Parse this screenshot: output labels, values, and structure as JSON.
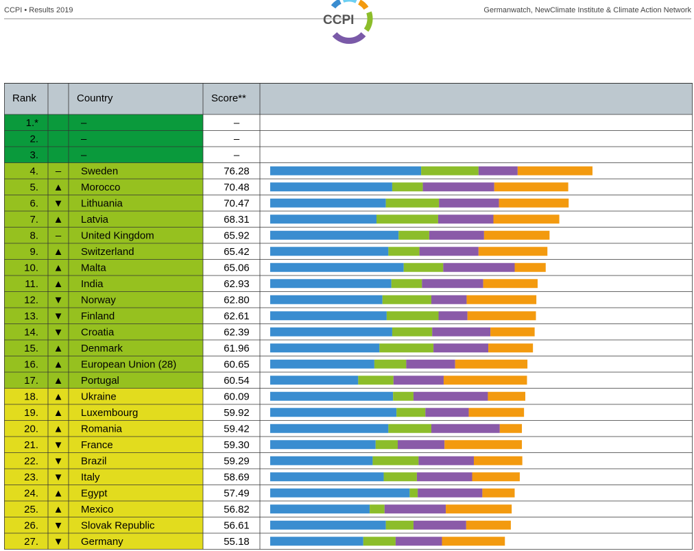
{
  "header": {
    "left_text": "CCPI • Results 2019",
    "right_text": "Germanwatch, NewClimate Institute & Climate Action Network",
    "logo_text": "CCPI"
  },
  "table": {
    "columns": [
      "Rank",
      "",
      "Country",
      "Score**",
      ""
    ],
    "colors": {
      "header_bg": "#bdc8cf",
      "very_high": "#0a9a3c",
      "high": "#96c11f",
      "medium": "#e2dc1e",
      "blank": "#ffffff"
    },
    "trend_symbols": {
      "same": "–",
      "up": "▲",
      "down": "▼"
    }
  },
  "chart_data": {
    "type": "bar",
    "stacked": true,
    "orientation": "horizontal",
    "series": [
      {
        "name": "",
        "color": "#3a8dd0"
      },
      {
        "name": "",
        "color": "#8cbd2a"
      },
      {
        "name": "",
        "color": "#8a5aa8"
      },
      {
        "name": "",
        "color": "#f39a0f"
      }
    ],
    "rows": [
      {
        "rank": "1.*",
        "trend": "",
        "country": "–",
        "score": "–",
        "band": "very_high",
        "values": []
      },
      {
        "rank": "2.",
        "trend": "",
        "country": "–",
        "score": "–",
        "band": "very_high",
        "values": []
      },
      {
        "rank": "3.",
        "trend": "",
        "country": "–",
        "score": "–",
        "band": "very_high",
        "values": []
      },
      {
        "rank": "4.",
        "trend": "same",
        "country": "Sweden",
        "score": "76.28",
        "band": "high",
        "values": [
          35.5,
          13.5,
          9.2,
          17.6
        ]
      },
      {
        "rank": "5.",
        "trend": "up",
        "country": "Morocco",
        "score": "70.48",
        "band": "high",
        "values": [
          28.7,
          7.2,
          16.8,
          17.4
        ]
      },
      {
        "rank": "6.",
        "trend": "down",
        "country": "Lithuania",
        "score": "70.47",
        "band": "high",
        "values": [
          27.2,
          12.5,
          14.1,
          16.4
        ]
      },
      {
        "rank": "7.",
        "trend": "up",
        "country": "Latvia",
        "score": "68.31",
        "band": "high",
        "values": [
          25.0,
          14.5,
          13.0,
          15.5
        ]
      },
      {
        "rank": "8.",
        "trend": "same",
        "country": "United Kingdom",
        "score": "65.92",
        "band": "high",
        "values": [
          30.2,
          7.2,
          12.9,
          15.4
        ]
      },
      {
        "rank": "9.",
        "trend": "up",
        "country": "Switzerland",
        "score": "65.42",
        "band": "high",
        "values": [
          27.8,
          7.3,
          13.9,
          16.2
        ]
      },
      {
        "rank": "10.",
        "trend": "up",
        "country": "Malta",
        "score": "65.06",
        "band": "high",
        "values": [
          31.4,
          9.3,
          16.8,
          7.3
        ]
      },
      {
        "rank": "11.",
        "trend": "up",
        "country": "India",
        "score": "62.93",
        "band": "high",
        "values": [
          28.5,
          7.2,
          14.4,
          12.8
        ]
      },
      {
        "rank": "12.",
        "trend": "down",
        "country": "Norway",
        "score": "62.80",
        "band": "high",
        "values": [
          26.4,
          11.5,
          8.3,
          16.4
        ]
      },
      {
        "rank": "13.",
        "trend": "down",
        "country": "Finland",
        "score": "62.61",
        "band": "high",
        "values": [
          27.4,
          12.2,
          6.8,
          16.1
        ]
      },
      {
        "rank": "14.",
        "trend": "down",
        "country": "Croatia",
        "score": "62.39",
        "band": "high",
        "values": [
          28.7,
          9.4,
          13.7,
          10.4
        ]
      },
      {
        "rank": "15.",
        "trend": "up",
        "country": "Denmark",
        "score": "61.96",
        "band": "high",
        "values": [
          25.7,
          12.7,
          12.9,
          10.5
        ]
      },
      {
        "rank": "16.",
        "trend": "up",
        "country": "European Union (28)",
        "score": "60.65",
        "band": "high",
        "values": [
          24.5,
          7.5,
          11.5,
          17.0
        ]
      },
      {
        "rank": "17.",
        "trend": "up",
        "country": "Portugal",
        "score": "60.54",
        "band": "high",
        "values": [
          20.7,
          8.3,
          11.8,
          19.6
        ]
      },
      {
        "rank": "18.",
        "trend": "up",
        "country": "Ukraine",
        "score": "60.09",
        "band": "medium",
        "values": [
          28.9,
          4.8,
          17.5,
          8.8
        ]
      },
      {
        "rank": "19.",
        "trend": "up",
        "country": "Luxembourg",
        "score": "59.92",
        "band": "medium",
        "values": [
          29.7,
          6.8,
          10.2,
          13.0
        ]
      },
      {
        "rank": "20.",
        "trend": "up",
        "country": "Romania",
        "score": "59.42",
        "band": "medium",
        "values": [
          27.8,
          10.1,
          16.1,
          5.2
        ]
      },
      {
        "rank": "21.",
        "trend": "down",
        "country": "France",
        "score": "59.30",
        "band": "medium",
        "values": [
          24.8,
          5.2,
          11.0,
          18.2
        ]
      },
      {
        "rank": "22.",
        "trend": "down",
        "country": "Brazil",
        "score": "59.29",
        "band": "medium",
        "values": [
          24.1,
          10.8,
          13.0,
          11.4
        ]
      },
      {
        "rank": "23.",
        "trend": "down",
        "country": "Italy",
        "score": "58.69",
        "band": "medium",
        "values": [
          26.7,
          7.8,
          13.0,
          11.2
        ]
      },
      {
        "rank": "24.",
        "trend": "up",
        "country": "Egypt",
        "score": "57.49",
        "band": "medium",
        "values": [
          32.8,
          1.9,
          15.2,
          7.6
        ]
      },
      {
        "rank": "25.",
        "trend": "up",
        "country": "Mexico",
        "score": "56.82",
        "band": "medium",
        "values": [
          23.4,
          3.5,
          14.4,
          15.5
        ]
      },
      {
        "rank": "26.",
        "trend": "down",
        "country": "Slovak Republic",
        "score": "56.61",
        "band": "medium",
        "values": [
          27.2,
          6.5,
          12.4,
          10.5
        ]
      },
      {
        "rank": "27.",
        "trend": "down",
        "country": "Germany",
        "score": "55.18",
        "band": "medium",
        "values": [
          21.9,
          7.6,
          10.9,
          14.8
        ]
      }
    ]
  }
}
